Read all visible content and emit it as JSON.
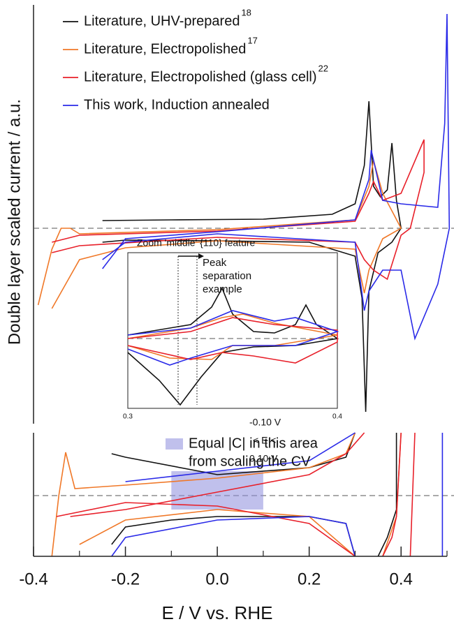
{
  "chart_data": [
    {
      "type": "line",
      "ylabel": "Double layer scaled current / a.u.",
      "xlim": [
        -0.4,
        0.5
      ],
      "ylim": [
        -2.8,
        3.2
      ],
      "series": [
        {
          "name": "Literature, UHV-prepared",
          "ref": "18",
          "color": "#111111",
          "x": [
            -0.25,
            -0.1,
            0.1,
            0.25,
            0.3,
            0.32,
            0.33,
            0.34,
            0.355,
            0.37,
            0.38,
            0.39,
            0.4,
            0.38,
            0.35,
            0.33,
            0.323,
            0.315,
            0.3,
            0.2,
            0.0,
            -0.2,
            -0.25
          ],
          "values": [
            0.11,
            0.12,
            0.13,
            0.2,
            0.35,
            0.9,
            1.82,
            0.6,
            0.45,
            0.55,
            1.22,
            0.4,
            0.0,
            -0.2,
            -0.35,
            -0.9,
            -2.63,
            -1.0,
            -0.4,
            -0.2,
            -0.18,
            -0.17,
            -0.2
          ]
        },
        {
          "name": "Literature, Electropolished",
          "ref": "17",
          "color": "#f07828",
          "x": [
            -0.39,
            -0.36,
            -0.34,
            -0.32,
            -0.3,
            0.0,
            0.3,
            0.33,
            0.34,
            0.36,
            0.4,
            0.36,
            0.33,
            0.32,
            0.3,
            0.0,
            -0.2,
            -0.3,
            -0.36
          ],
          "values": [
            -1.1,
            -0.3,
            0.0,
            0.0,
            -0.08,
            -0.02,
            0.12,
            0.6,
            0.97,
            0.5,
            0.0,
            -0.15,
            -0.6,
            -0.93,
            -0.3,
            -0.18,
            -0.28,
            -0.45,
            -1.15
          ]
        },
        {
          "name": "Literature, Electropolished (glass cell)",
          "ref": "22",
          "color": "#e8202a",
          "x": [
            -0.36,
            -0.3,
            0.0,
            0.3,
            0.33,
            0.34,
            0.36,
            0.4,
            0.45,
            0.45,
            0.42,
            0.4,
            0.37,
            0.34,
            0.32,
            0.3,
            0.0,
            -0.3,
            -0.36
          ],
          "values": [
            -0.2,
            -0.1,
            -0.04,
            0.1,
            0.5,
            0.67,
            0.4,
            0.5,
            1.27,
            0.8,
            0.0,
            -0.1,
            -0.73,
            -0.6,
            -0.45,
            -0.2,
            -0.13,
            -0.25,
            -0.35
          ]
        },
        {
          "name": "This work, Induction annealed",
          "color": "#2a2ae8",
          "x": [
            -0.25,
            -0.2,
            0.0,
            0.3,
            0.33,
            0.335,
            0.36,
            0.4,
            0.48,
            0.495,
            0.5,
            0.505,
            0.48,
            0.43,
            0.4,
            0.36,
            0.33,
            0.32,
            0.3,
            0.0,
            -0.2,
            -0.25
          ],
          "values": [
            -0.58,
            -0.15,
            -0.05,
            0.12,
            0.7,
            1.12,
            0.4,
            0.35,
            0.3,
            1.5,
            3.07,
            0.0,
            -0.8,
            -1.58,
            -0.6,
            -0.6,
            -0.9,
            -1.18,
            -0.2,
            -0.08,
            -0.2,
            -0.45
          ]
        }
      ]
    },
    {
      "type": "line",
      "xlabel": "E / V vs. RHE",
      "xlim": [
        -0.4,
        0.5
      ],
      "ylim": [
        -0.87,
        0.9
      ],
      "xticks": [
        -0.4,
        -0.2,
        {
          "value": 0,
          "label": "0.0"
        },
        0.2,
        0.4
      ],
      "minor_xticks": [
        -0.3,
        -0.1,
        0.1,
        0.3,
        0.5
      ],
      "shade": {
        "x": [
          -0.1,
          0.1
        ],
        "y": [
          -0.2,
          0.35
        ],
        "color": "#8c8cdc"
      },
      "annotations": [
        "Equal |C| in this area",
        "from scaling the CV",
        "-0.10 V",
        "< E <",
        "0.10 V"
      ],
      "series": [
        {
          "color": "#111111",
          "x": [
            -0.23,
            -0.2,
            -0.1,
            0.0,
            0.1,
            0.2,
            0.28,
            0.3,
            null,
            0.3,
            0.28,
            0.2,
            0.0,
            -0.2,
            -0.23,
            null,
            0.35,
            0.37,
            0.39,
            0.39
          ],
          "values": [
            -0.7,
            -0.45,
            -0.35,
            -0.3,
            -0.3,
            -0.3,
            -0.4,
            -0.87,
            null,
            0.9,
            0.55,
            0.4,
            0.3,
            0.55,
            0.6,
            null,
            -0.87,
            -0.6,
            -0.2,
            0.9
          ]
        },
        {
          "color": "#f07828",
          "x": [
            -0.36,
            -0.345,
            -0.33,
            -0.31,
            -0.2,
            0.0,
            0.2,
            0.28,
            0.3,
            null,
            0.3,
            0.2,
            0.0,
            -0.2,
            -0.3,
            null,
            0.36,
            0.39,
            0.4
          ],
          "values": [
            -0.87,
            0.0,
            0.62,
            0.1,
            0.15,
            0.25,
            0.4,
            0.6,
            0.9,
            null,
            -0.87,
            -0.3,
            -0.2,
            -0.35,
            -0.7,
            null,
            -0.87,
            -0.3,
            0.9
          ]
        },
        {
          "color": "#e8202a",
          "x": [
            -0.32,
            -0.2,
            0.0,
            0.2,
            0.28,
            0.32,
            null,
            0.3,
            0.2,
            0.0,
            -0.2,
            -0.35,
            null,
            0.36,
            0.38,
            0.39,
            0.4,
            null,
            0.42,
            0.43
          ],
          "values": [
            -0.3,
            -0.2,
            0.05,
            0.3,
            0.6,
            0.9,
            null,
            -0.87,
            -0.4,
            -0.15,
            -0.1,
            -0.3,
            null,
            -0.87,
            -0.6,
            -0.3,
            0.9,
            null,
            -0.87,
            0.9
          ]
        },
        {
          "color": "#2a2ae8",
          "x": [
            -0.23,
            -0.2,
            0.0,
            0.2,
            0.28,
            0.3,
            null,
            0.3,
            0.2,
            0.0,
            -0.2,
            null,
            0.49,
            0.49
          ],
          "values": [
            -0.87,
            -0.6,
            -0.35,
            -0.3,
            -0.4,
            -0.87,
            null,
            0.9,
            0.5,
            0.35,
            0.2,
            null,
            -0.87,
            0.9
          ]
        }
      ]
    },
    {
      "type": "line",
      "title": "Zoom 'middle' {110} feature",
      "annotation": [
        "Peak",
        "separation",
        "example"
      ],
      "xlim": [
        0.3,
        0.4
      ],
      "ylim": [
        -1.0,
        1.23
      ],
      "xticks": [
        0.3,
        0.4
      ],
      "vlines": [
        0.324,
        0.333
      ],
      "series": [
        {
          "color": "#111111",
          "x": [
            0.3,
            0.33,
            0.34,
            0.345,
            0.35,
            0.36,
            0.37,
            0.38,
            0.385,
            0.39,
            0.4,
            0.38,
            0.36,
            0.345,
            0.335,
            0.325,
            0.315,
            0.3
          ],
          "values": [
            0.05,
            0.2,
            0.45,
            0.72,
            0.35,
            0.1,
            0.08,
            0.2,
            0.48,
            0.2,
            0.0,
            -0.1,
            -0.12,
            -0.2,
            -0.55,
            -0.95,
            -0.6,
            -0.2
          ]
        },
        {
          "color": "#f07828",
          "x": [
            0.3,
            0.33,
            0.345,
            0.355,
            0.37,
            0.4,
            0.37,
            0.35,
            0.34,
            0.32,
            0.3
          ],
          "values": [
            0.0,
            0.15,
            0.3,
            0.35,
            0.22,
            0.05,
            -0.1,
            -0.1,
            -0.3,
            -0.28,
            -0.1
          ]
        },
        {
          "color": "#e8202a",
          "x": [
            0.3,
            0.33,
            0.35,
            0.37,
            0.4,
            0.4,
            0.38,
            0.36,
            0.345,
            0.33,
            0.3
          ],
          "values": [
            0.0,
            0.1,
            0.3,
            0.2,
            0.12,
            -0.05,
            -0.35,
            -0.25,
            -0.2,
            -0.3,
            -0.1
          ]
        },
        {
          "color": "#2a2ae8",
          "x": [
            0.3,
            0.33,
            0.35,
            0.37,
            0.38,
            0.4,
            0.38,
            0.35,
            0.33,
            0.32,
            0.3
          ],
          "values": [
            0.05,
            0.15,
            0.4,
            0.25,
            0.3,
            0.1,
            -0.1,
            -0.1,
            -0.28,
            -0.38,
            -0.15
          ]
        }
      ]
    }
  ]
}
